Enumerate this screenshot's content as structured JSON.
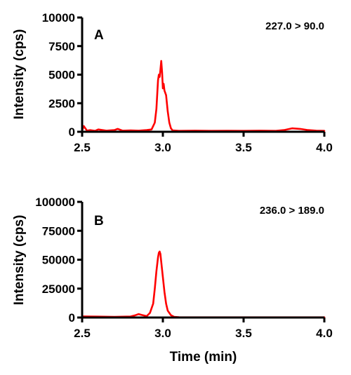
{
  "chart_data": [
    {
      "type": "line",
      "panel_label": "A",
      "annotation": "227.0 > 90.0",
      "xlabel": "",
      "ylabel": "Intensity (cps)",
      "xlim": [
        2.5,
        4.0
      ],
      "ylim": [
        0,
        10000
      ],
      "xticks": [
        "2.5",
        "3.0",
        "3.5",
        "4.0"
      ],
      "yticks": [
        "0",
        "2500",
        "5000",
        "7500",
        "10000"
      ],
      "series": [
        {
          "color": "#ff0000",
          "x": [
            2.5,
            2.51,
            2.52,
            2.53,
            2.55,
            2.58,
            2.6,
            2.65,
            2.7,
            2.72,
            2.75,
            2.8,
            2.85,
            2.9,
            2.93,
            2.95,
            2.96,
            2.97,
            2.975,
            2.98,
            2.985,
            2.99,
            2.995,
            3.0,
            3.005,
            3.01,
            3.02,
            3.03,
            3.04,
            3.05,
            3.06,
            3.1,
            3.2,
            3.3,
            3.4,
            3.5,
            3.6,
            3.7,
            3.75,
            3.8,
            3.85,
            3.9,
            3.95,
            4.0
          ],
          "y": [
            100,
            500,
            300,
            100,
            150,
            80,
            200,
            100,
            150,
            250,
            100,
            120,
            100,
            150,
            200,
            800,
            2000,
            4500,
            5000,
            4800,
            5400,
            6200,
            5200,
            3800,
            4200,
            3600,
            3200,
            1800,
            800,
            300,
            120,
            80,
            100,
            80,
            90,
            80,
            100,
            80,
            150,
            300,
            250,
            150,
            100,
            80
          ]
        }
      ]
    },
    {
      "type": "line",
      "panel_label": "B",
      "annotation": "236.0 > 189.0",
      "xlabel": "Time (min)",
      "ylabel": "Intensity (cps)",
      "xlim": [
        2.5,
        4.0
      ],
      "ylim": [
        0,
        100000
      ],
      "xticks": [
        "2.5",
        "3.0",
        "3.5",
        "4.0"
      ],
      "yticks": [
        "0",
        "25000",
        "50000",
        "75000",
        "100000"
      ],
      "series": [
        {
          "color": "#ff0000",
          "x": [
            2.5,
            2.6,
            2.7,
            2.8,
            2.83,
            2.85,
            2.87,
            2.9,
            2.92,
            2.94,
            2.95,
            2.96,
            2.97,
            2.975,
            2.98,
            2.985,
            2.99,
            3.0,
            3.01,
            3.02,
            3.03,
            3.05,
            3.07,
            3.1,
            3.2,
            3.3,
            3.5,
            3.7,
            4.0
          ],
          "y": [
            1000,
            800,
            600,
            900,
            2000,
            3000,
            2200,
            1200,
            4000,
            12000,
            25000,
            40000,
            52000,
            56000,
            57000,
            55000,
            48000,
            35000,
            22000,
            12000,
            6000,
            2000,
            600,
            300,
            200,
            200,
            200,
            200,
            200
          ]
        }
      ]
    }
  ]
}
